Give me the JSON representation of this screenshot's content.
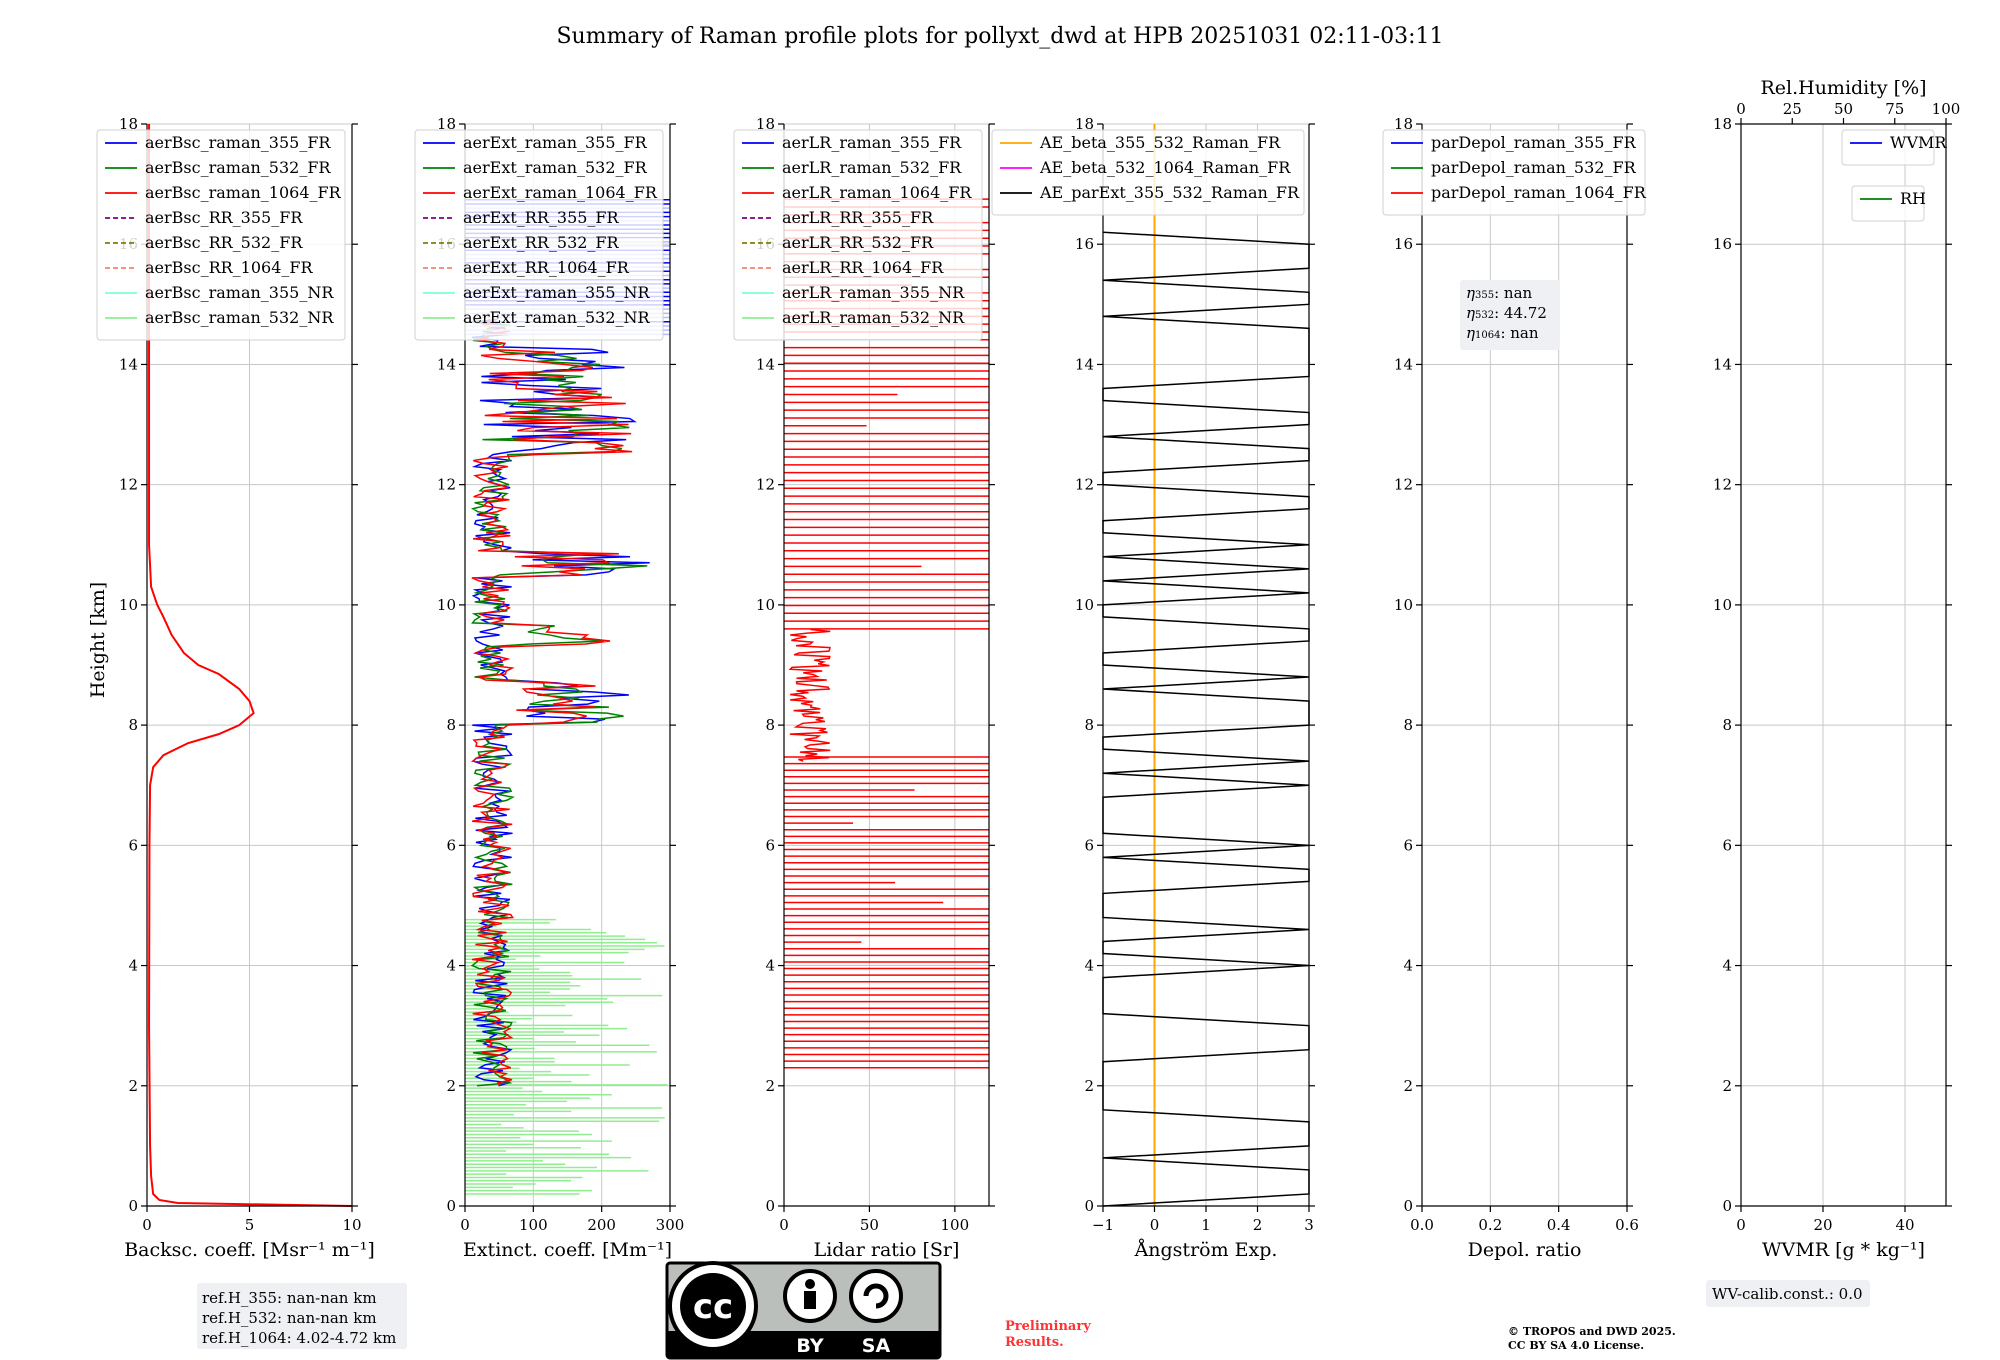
{
  "page": {
    "title": "Summary of Raman profile plots for pollyxt_dwd at HPB 20251031 02:11-03:11",
    "y_label": "Height [km]"
  },
  "colors": {
    "blue": "#0000ff",
    "green": "#008000",
    "red": "#ff0000",
    "purple": "#800080",
    "olive": "#808000",
    "salmon": "#fa8072",
    "cyan": "#7fffd4",
    "lightgreen": "#90ee90",
    "orange": "#ffa500",
    "magenta": "#ff00ff",
    "black": "#000000"
  },
  "chart_data": [
    {
      "type": "line",
      "name": "backscatter",
      "xlabel": "Backsc. coeff. [Msr⁻¹ m⁻¹]",
      "xlim": [
        0,
        10
      ],
      "xticks": [
        0,
        5,
        10
      ],
      "ylim": [
        0,
        18
      ],
      "yticks": [
        0,
        2,
        4,
        6,
        8,
        10,
        12,
        14,
        16,
        18
      ],
      "legend": [
        "aerBsc_raman_355_FR",
        "aerBsc_raman_532_FR",
        "aerBsc_raman_1064_FR",
        "aerBsc_RR_355_FR",
        "aerBsc_RR_532_FR",
        "aerBsc_RR_1064_FR",
        "aerBsc_raman_355_NR",
        "aerBsc_raman_532_NR"
      ],
      "legend_colors": [
        "blue",
        "green",
        "red",
        "purple",
        "olive",
        "salmon",
        "cyan",
        "lightgreen"
      ],
      "legend_dashed": [
        false,
        false,
        false,
        true,
        true,
        true,
        false,
        false
      ],
      "series": [
        {
          "name": "aerBsc_raman_1064_FR",
          "color": "red",
          "x": [
            10,
            1.5,
            0.6,
            0.3,
            0.2,
            0.15,
            0.1,
            0.12,
            0.15,
            0.3,
            0.8,
            2.0,
            3.5,
            4.5,
            5.2,
            5.0,
            4.5,
            3.5,
            2.5,
            1.8,
            1.2,
            0.8,
            0.5,
            0.2,
            0.1,
            0.1,
            0.1
          ],
          "y": [
            0.0,
            0.05,
            0.1,
            0.2,
            0.5,
            1.0,
            3.0,
            6.0,
            7.0,
            7.3,
            7.5,
            7.7,
            7.85,
            8.0,
            8.2,
            8.4,
            8.6,
            8.85,
            9.0,
            9.2,
            9.5,
            9.8,
            10.0,
            10.3,
            11.0,
            14.0,
            18.0
          ]
        }
      ]
    },
    {
      "type": "line",
      "name": "extinction",
      "xlabel": "Extinct. coeff. [Mm⁻¹]",
      "xlim": [
        0,
        300
      ],
      "xticks": [
        0,
        100,
        200,
        300
      ],
      "ylim": [
        0,
        18
      ],
      "yticks": [
        0,
        2,
        4,
        6,
        8,
        10,
        12,
        14,
        16,
        18
      ],
      "legend": [
        "aerExt_raman_355_FR",
        "aerExt_raman_532_FR",
        "aerExt_raman_1064_FR",
        "aerExt_RR_355_FR",
        "aerExt_RR_532_FR",
        "aerExt_RR_1064_FR",
        "aerExt_raman_355_NR",
        "aerExt_raman_532_NR"
      ],
      "legend_colors": [
        "blue",
        "green",
        "red",
        "purple",
        "olive",
        "salmon",
        "cyan",
        "lightgreen"
      ],
      "legend_dashed": [
        false,
        false,
        false,
        true,
        true,
        true,
        false,
        false
      ]
    },
    {
      "type": "line",
      "name": "lidar_ratio",
      "xlabel": "Lidar ratio [Sr]",
      "xlim": [
        0,
        120
      ],
      "xticks": [
        0,
        50,
        100
      ],
      "ylim": [
        0,
        18
      ],
      "yticks": [
        0,
        2,
        4,
        6,
        8,
        10,
        12,
        14,
        16,
        18
      ],
      "legend": [
        "aerLR_raman_355_FR",
        "aerLR_raman_532_FR",
        "aerLR_raman_1064_FR",
        "aerLR_RR_355_FR",
        "aerLR_RR_532_FR",
        "aerLR_RR_1064_FR",
        "aerLR_raman_355_NR",
        "aerLR_raman_532_NR"
      ],
      "legend_colors": [
        "blue",
        "green",
        "red",
        "purple",
        "olive",
        "salmon",
        "cyan",
        "lightgreen"
      ],
      "legend_dashed": [
        false,
        false,
        false,
        true,
        true,
        true,
        false,
        false
      ]
    },
    {
      "type": "line",
      "name": "angstrom",
      "xlabel": "Ångström Exp.",
      "xlim": [
        -1,
        3
      ],
      "xticks": [
        -1,
        0,
        1,
        2,
        3
      ],
      "xtick_labels": [
        "−1",
        "0",
        "1",
        "2",
        "3"
      ],
      "ylim": [
        0,
        18
      ],
      "yticks": [
        0,
        2,
        4,
        6,
        8,
        10,
        12,
        14,
        16,
        18
      ],
      "legend": [
        "AE_beta_355_532_Raman_FR",
        "AE_beta_532_1064_Raman_FR",
        "AE_parExt_355_532_Raman_FR"
      ],
      "legend_colors": [
        "orange",
        "magenta",
        "black"
      ],
      "legend_dashed": [
        false,
        false,
        false
      ],
      "series": [
        {
          "name": "AE_beta_355_532_Raman_FR",
          "color": "orange",
          "x": [
            0,
            0
          ],
          "y": [
            0,
            18
          ]
        }
      ]
    },
    {
      "type": "line",
      "name": "depol",
      "xlabel": "Depol. ratio",
      "xlim": [
        0,
        0.6
      ],
      "xticks": [
        0,
        0.2,
        0.4,
        0.6
      ],
      "xtick_labels": [
        "0.0",
        "0.2",
        "0.4",
        "0.6"
      ],
      "ylim": [
        0,
        18
      ],
      "yticks": [
        0,
        2,
        4,
        6,
        8,
        10,
        12,
        14,
        16,
        18
      ],
      "legend": [
        "parDepol_raman_355_FR",
        "parDepol_raman_532_FR",
        "parDepol_raman_1064_FR"
      ],
      "legend_colors": [
        "blue",
        "green",
        "red"
      ],
      "legend_dashed": [
        false,
        false,
        false
      ],
      "eta": [
        {
          "sub": "355",
          "value": "nan"
        },
        {
          "sub": "532",
          "value": "44.72"
        },
        {
          "sub": "1064",
          "value": "nan"
        }
      ]
    },
    {
      "type": "line",
      "name": "wvmr",
      "xlabel": "WVMR [g * kg⁻¹]",
      "xlim": [
        0,
        50
      ],
      "xticks": [
        0,
        20,
        40
      ],
      "top_label": "Rel.Humidity [%]",
      "top_ticks": [
        0,
        25,
        50,
        75,
        100
      ],
      "ylim": [
        0,
        18
      ],
      "yticks": [
        0,
        2,
        4,
        6,
        8,
        10,
        12,
        14,
        16,
        18
      ],
      "legend": [
        "WVMR"
      ],
      "legend_colors": [
        "blue"
      ],
      "legend2": [
        "RH"
      ],
      "legend2_colors": [
        "green"
      ]
    }
  ],
  "annotations": {
    "ref_heights": [
      "ref.H_355: nan-nan km",
      "ref.H_532: nan-nan km",
      "ref.H_1064: 4.02-4.72 km"
    ],
    "license_badge": {
      "by": "BY",
      "sa": "SA"
    },
    "preliminary": [
      "Preliminary",
      "Results."
    ],
    "copyright": [
      "© TROPOS and DWD 2025.",
      "CC BY SA 4.0 License."
    ],
    "wv_calib": "WV-calib.const.: 0.0"
  }
}
